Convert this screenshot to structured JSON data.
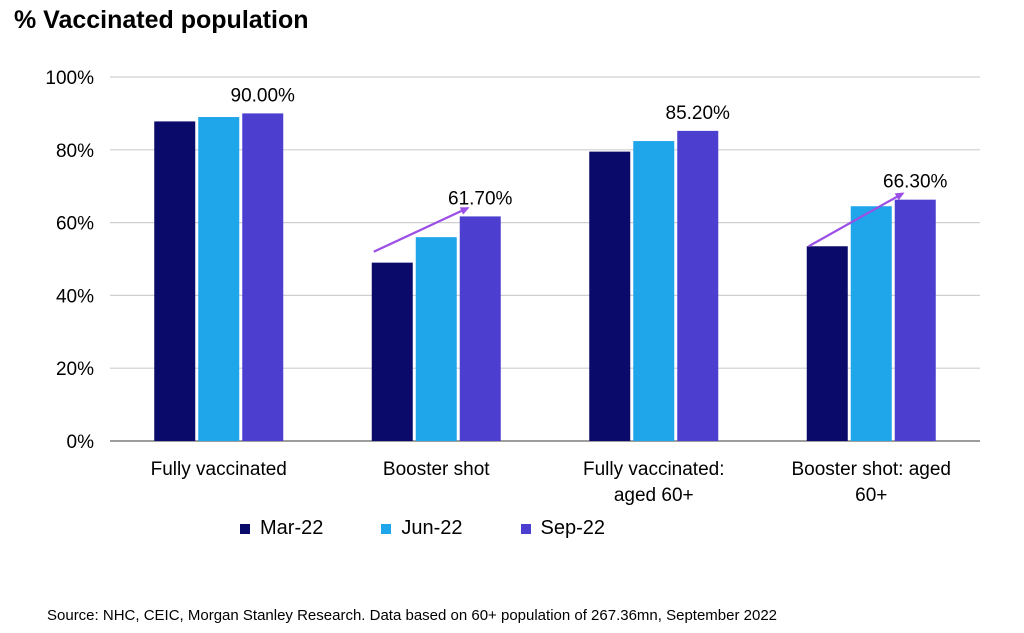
{
  "chart_data": {
    "type": "bar",
    "title": "% Vaccinated population",
    "categories": [
      "Fully vaccinated",
      "Booster shot",
      "Fully vaccinated: aged 60+",
      "Booster shot: aged 60+"
    ],
    "category_label_lines": [
      [
        "Fully vaccinated"
      ],
      [
        "Booster shot"
      ],
      [
        "Fully vaccinated:",
        "aged 60+"
      ],
      [
        "Booster shot: aged",
        "60+"
      ]
    ],
    "series": [
      {
        "name": "Mar-22",
        "color": "#0a0a6b",
        "values": [
          87.8,
          49.0,
          79.5,
          53.5
        ]
      },
      {
        "name": "Jun-22",
        "color": "#1ea5ea",
        "values": [
          89.0,
          56.0,
          82.4,
          64.5
        ]
      },
      {
        "name": "Sep-22",
        "color": "#4c3fcf",
        "values": [
          90.0,
          61.7,
          85.2,
          66.3
        ]
      }
    ],
    "data_labels": [
      {
        "category": 0,
        "series": 2,
        "text": "90.00%"
      },
      {
        "category": 1,
        "series": 2,
        "text": "61.70%"
      },
      {
        "category": 2,
        "series": 2,
        "text": "85.20%"
      },
      {
        "category": 3,
        "series": 2,
        "text": "66.30%"
      }
    ],
    "trend_arrows": [
      {
        "category": 1,
        "from_value": 52.0,
        "to_value": 64.0
      },
      {
        "category": 3,
        "from_value": 53.5,
        "to_value": 68.0
      }
    ],
    "arrow_color": "#9b4fe6",
    "ylim": [
      0,
      100
    ],
    "yticks": [
      0,
      20,
      40,
      60,
      80,
      100
    ],
    "ytick_labels": [
      "0%",
      "20%",
      "40%",
      "60%",
      "80%",
      "100%"
    ],
    "xlabel": "",
    "ylabel": "",
    "grid": true,
    "legend_position": "bottom"
  },
  "source": "Source: NHC, CEIC, Morgan Stanley Research. Data based on 60+ population of 267.36mn, September 2022"
}
